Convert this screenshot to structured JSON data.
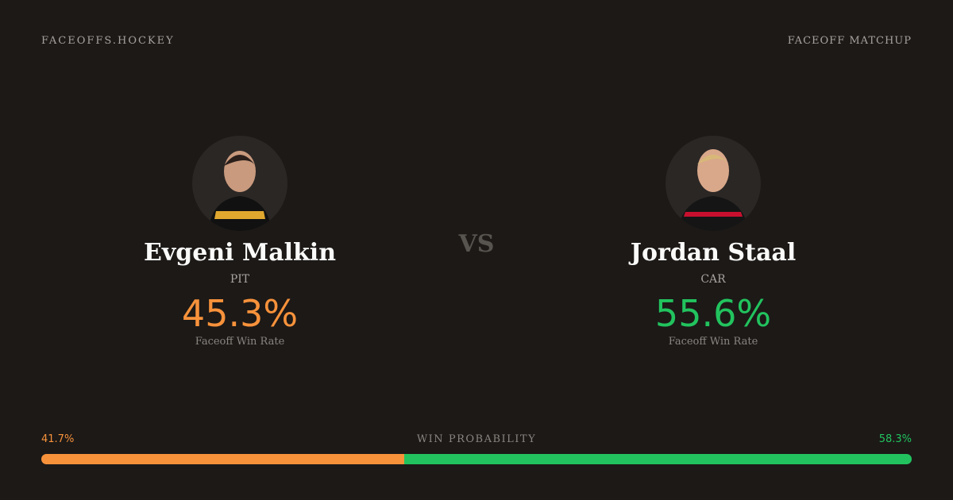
{
  "header": {
    "brand": "FACEOFFS.HOCKEY",
    "label": "FACEOFF MATCHUP"
  },
  "players": [
    {
      "name": "Evgeni Malkin",
      "team": "PIT",
      "rate": "45.3%",
      "rate_label": "Faceoff Win Rate",
      "color": "#f7923b"
    },
    {
      "name": "Jordan Staal",
      "team": "CAR",
      "rate": "55.6%",
      "rate_label": "Faceoff Win Rate",
      "color": "#22c35e"
    }
  ],
  "vs": "VS",
  "win_probability": {
    "title": "WIN PROBABILITY",
    "values": [
      41.7,
      58.3
    ],
    "value_labels": [
      "41.7%",
      "58.3%"
    ]
  }
}
